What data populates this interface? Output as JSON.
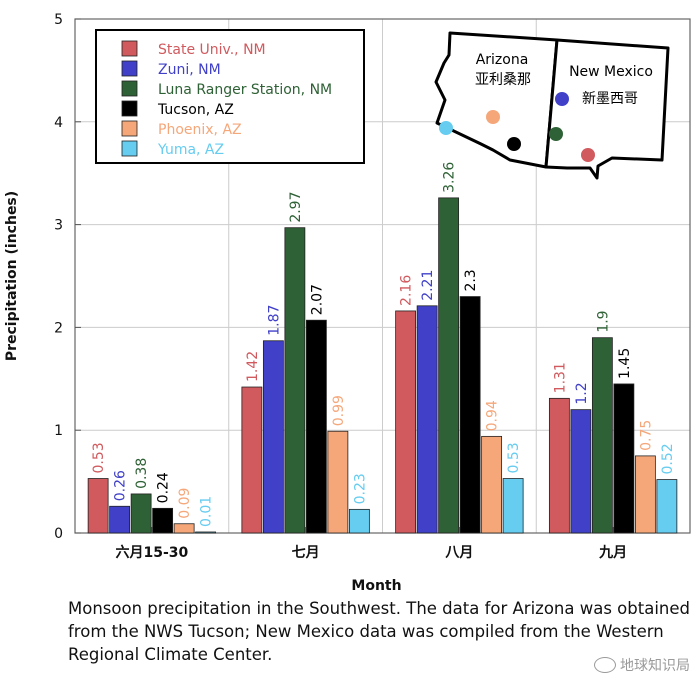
{
  "chart_data": {
    "type": "bar",
    "title": "",
    "xlabel": "Month",
    "ylabel": "Precipitation (inches)",
    "ylim": [
      0,
      5
    ],
    "yticks": [
      0,
      1,
      2,
      3,
      4,
      5
    ],
    "grid": true,
    "legend_position": "top-left",
    "categories": [
      "六月15-30",
      "七月",
      "八月",
      "九月"
    ],
    "series": [
      {
        "name": "State Univ., NM",
        "color": "#d05a5e",
        "values": [
          0.53,
          1.42,
          2.16,
          1.31
        ],
        "labels": [
          "0.53",
          "1.42",
          "2.16",
          "1.31"
        ]
      },
      {
        "name": "Zuni, NM",
        "color": "#4040c8",
        "values": [
          0.26,
          1.87,
          2.21,
          1.2
        ],
        "labels": [
          "0.26",
          "1.87",
          "2.21",
          "1.2"
        ]
      },
      {
        "name": "Luna Ranger Station, NM",
        "color": "#2e6135",
        "values": [
          0.38,
          2.97,
          3.26,
          1.9
        ],
        "labels": [
          "0.38",
          "2.97",
          "3.26",
          "1.9"
        ]
      },
      {
        "name": "Tucson, AZ",
        "color": "#000000",
        "values": [
          0.24,
          2.07,
          2.3,
          1.45
        ],
        "labels": [
          "0.24",
          "2.07",
          "2.3",
          "1.45"
        ]
      },
      {
        "name": "Phoenix, AZ",
        "color": "#f5a77a",
        "values": [
          0.09,
          0.99,
          0.94,
          0.75
        ],
        "labels": [
          "0.09",
          "0.99",
          "0.94",
          "0.75"
        ]
      },
      {
        "name": "Yuma, AZ",
        "color": "#66ccf0",
        "values": [
          0.01,
          0.23,
          0.53,
          0.52
        ],
        "labels": [
          "0.01",
          "0.23",
          "0.53",
          "0.52"
        ]
      }
    ],
    "map_inset": {
      "arizona_label": "Arizona",
      "arizona_label_zh": "亚利桑那",
      "new_mexico_label": "New Mexico",
      "new_mexico_label_zh": "新墨西哥"
    }
  },
  "caption": "Monsoon precipitation in the Southwest. The data for Arizona was obtained from the NWS Tucson; New Mexico data was compiled from the Western Regional Climate Center.",
  "watermark": "地球知识局"
}
